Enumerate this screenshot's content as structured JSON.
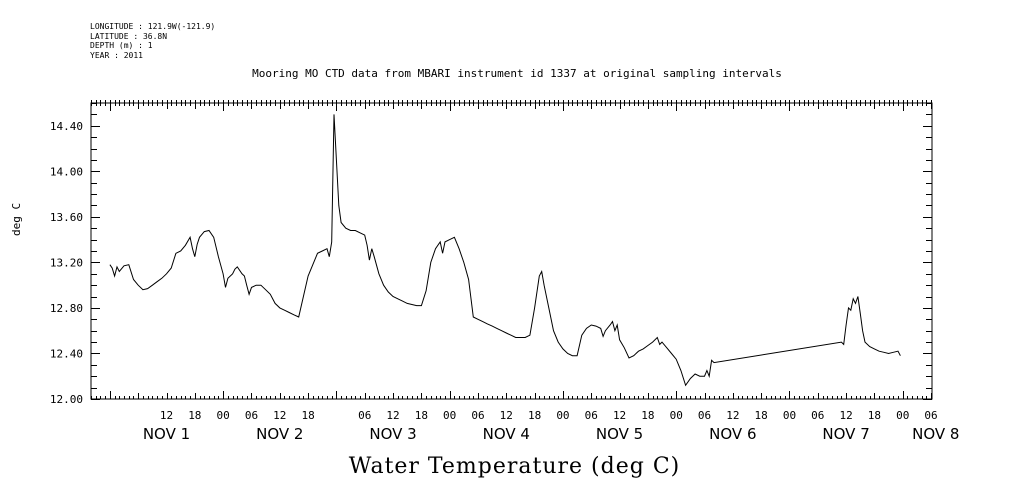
{
  "header": {
    "longitude": "LONGITUDE : 121.9W(-121.9)",
    "latitude": "LATITUDE : 36.8N",
    "depth": "DEPTH (m) : 1",
    "year": "YEAR : 2011"
  },
  "chart_data": {
    "type": "line",
    "title": "Mooring MO CTD data from MBARI instrument id 1337 at original sampling intervals",
    "subtitle": "Water Temperature (deg C)",
    "ylabel": "deg C",
    "xlabel": "",
    "ylim": [
      12.0,
      14.6
    ],
    "xlim_hours": [
      6,
      162
    ],
    "y_ticks": [
      "12.00",
      "12.40",
      "12.80",
      "13.20",
      "13.60",
      "14.00",
      "14.40"
    ],
    "x_hour_ticks": [
      {
        "h": 12,
        "label": "12"
      },
      {
        "h": 18,
        "label": "18"
      },
      {
        "h": 24,
        "label": "00"
      },
      {
        "h": 30,
        "label": "06"
      },
      {
        "h": 36,
        "label": "12"
      },
      {
        "h": 42,
        "label": "18"
      },
      {
        "h": 54,
        "label": "06"
      },
      {
        "h": 60,
        "label": "12"
      },
      {
        "h": 66,
        "label": "18"
      },
      {
        "h": 72,
        "label": "00"
      },
      {
        "h": 78,
        "label": "06"
      },
      {
        "h": 84,
        "label": "12"
      },
      {
        "h": 90,
        "label": "18"
      },
      {
        "h": 96,
        "label": "00"
      },
      {
        "h": 102,
        "label": "06"
      },
      {
        "h": 108,
        "label": "12"
      },
      {
        "h": 114,
        "label": "18"
      },
      {
        "h": 120,
        "label": "00"
      },
      {
        "h": 126,
        "label": "06"
      },
      {
        "h": 132,
        "label": "12"
      },
      {
        "h": 138,
        "label": "18"
      },
      {
        "h": 144,
        "label": "00"
      },
      {
        "h": 150,
        "label": "06"
      },
      {
        "h": 156,
        "label": "12"
      },
      {
        "h": 162,
        "label": "18"
      },
      {
        "h": 168,
        "label": "00"
      },
      {
        "h": 174,
        "label": "06"
      }
    ],
    "x_day_labels": [
      {
        "h": 12,
        "label": "NOV  1"
      },
      {
        "h": 36,
        "label": "NOV  2"
      },
      {
        "h": 60,
        "label": "NOV  3"
      },
      {
        "h": 84,
        "label": "NOV  4"
      },
      {
        "h": 108,
        "label": "NOV  5"
      },
      {
        "h": 132,
        "label": "NOV  6"
      },
      {
        "h": 156,
        "label": "NOV  7"
      },
      {
        "h": 175,
        "label": "NOV  8"
      }
    ],
    "series": [
      {
        "values_hour_temp": [
          [
            0,
            13.18
          ],
          [
            0.5,
            13.15
          ],
          [
            1,
            13.08
          ],
          [
            1.5,
            13.16
          ],
          [
            2,
            13.12
          ],
          [
            3,
            13.17
          ],
          [
            4,
            13.18
          ],
          [
            5,
            13.05
          ],
          [
            6,
            13.0
          ],
          [
            7,
            12.96
          ],
          [
            8,
            12.97
          ],
          [
            9,
            13.0
          ],
          [
            10,
            13.03
          ],
          [
            11,
            13.06
          ],
          [
            12,
            13.1
          ],
          [
            13,
            13.15
          ],
          [
            14,
            13.28
          ],
          [
            15,
            13.3
          ],
          [
            16,
            13.35
          ],
          [
            17,
            13.42
          ],
          [
            17.5,
            13.32
          ],
          [
            18,
            13.25
          ],
          [
            18.5,
            13.36
          ],
          [
            19,
            13.42
          ],
          [
            20,
            13.47
          ],
          [
            21,
            13.48
          ],
          [
            22,
            13.42
          ],
          [
            23,
            13.25
          ],
          [
            24,
            13.1
          ],
          [
            24.5,
            12.98
          ],
          [
            25,
            13.06
          ],
          [
            26,
            13.1
          ],
          [
            26.5,
            13.14
          ],
          [
            27,
            13.16
          ],
          [
            28,
            13.1
          ],
          [
            28.5,
            13.08
          ],
          [
            29,
            13.0
          ],
          [
            29.5,
            12.92
          ],
          [
            30,
            12.98
          ],
          [
            31,
            13.0
          ],
          [
            32,
            13.0
          ],
          [
            33,
            12.96
          ],
          [
            34,
            12.92
          ],
          [
            35,
            12.84
          ],
          [
            36,
            12.8
          ],
          [
            37,
            12.78
          ],
          [
            38,
            12.76
          ],
          [
            39,
            12.74
          ],
          [
            40,
            12.72
          ],
          [
            41,
            12.9
          ],
          [
            42,
            13.08
          ],
          [
            43,
            13.18
          ],
          [
            44,
            13.28
          ],
          [
            45,
            13.3
          ],
          [
            46,
            13.32
          ],
          [
            46.5,
            13.25
          ],
          [
            47,
            13.38
          ],
          [
            47.5,
            14.5
          ],
          [
            48,
            14.1
          ],
          [
            48.5,
            13.7
          ],
          [
            49,
            13.55
          ],
          [
            50,
            13.5
          ],
          [
            51,
            13.48
          ],
          [
            52,
            13.48
          ],
          [
            53,
            13.46
          ],
          [
            54,
            13.44
          ],
          [
            54.5,
            13.35
          ],
          [
            55,
            13.22
          ],
          [
            55.5,
            13.32
          ],
          [
            56,
            13.25
          ],
          [
            57,
            13.1
          ],
          [
            58,
            13.0
          ],
          [
            59,
            12.94
          ],
          [
            60,
            12.9
          ],
          [
            61,
            12.88
          ],
          [
            62,
            12.86
          ],
          [
            63,
            12.84
          ],
          [
            64,
            12.83
          ],
          [
            65,
            12.82
          ],
          [
            66,
            12.82
          ],
          [
            67,
            12.95
          ],
          [
            68,
            13.2
          ],
          [
            69,
            13.32
          ],
          [
            70,
            13.38
          ],
          [
            70.5,
            13.28
          ],
          [
            71,
            13.38
          ],
          [
            72,
            13.4
          ],
          [
            73,
            13.42
          ],
          [
            74,
            13.32
          ],
          [
            75,
            13.2
          ],
          [
            76,
            13.05
          ],
          [
            77,
            12.72
          ],
          [
            78,
            12.7
          ],
          [
            79,
            12.68
          ],
          [
            80,
            12.66
          ],
          [
            81,
            12.64
          ],
          [
            82,
            12.62
          ],
          [
            83,
            12.6
          ],
          [
            84,
            12.58
          ],
          [
            85,
            12.56
          ],
          [
            86,
            12.54
          ],
          [
            87,
            12.54
          ],
          [
            88,
            12.54
          ],
          [
            89,
            12.56
          ],
          [
            90,
            12.8
          ],
          [
            91,
            13.08
          ],
          [
            91.5,
            13.12
          ],
          [
            92,
            13.0
          ],
          [
            93,
            12.8
          ],
          [
            94,
            12.6
          ],
          [
            95,
            12.5
          ],
          [
            96,
            12.44
          ],
          [
            97,
            12.4
          ],
          [
            98,
            12.38
          ],
          [
            99,
            12.38
          ],
          [
            100,
            12.56
          ],
          [
            101,
            12.62
          ],
          [
            102,
            12.65
          ],
          [
            103,
            12.64
          ],
          [
            104,
            12.62
          ],
          [
            104.5,
            12.55
          ],
          [
            105,
            12.6
          ],
          [
            106,
            12.65
          ],
          [
            106.5,
            12.68
          ],
          [
            107,
            12.6
          ],
          [
            107.5,
            12.65
          ],
          [
            108,
            12.52
          ],
          [
            109,
            12.45
          ],
          [
            110,
            12.36
          ],
          [
            111,
            12.38
          ],
          [
            112,
            12.42
          ],
          [
            113,
            12.44
          ],
          [
            114,
            12.47
          ],
          [
            115,
            12.5
          ],
          [
            116,
            12.54
          ],
          [
            116.5,
            12.48
          ],
          [
            117,
            12.5
          ],
          [
            118,
            12.45
          ],
          [
            119,
            12.4
          ],
          [
            120,
            12.35
          ],
          [
            121,
            12.25
          ],
          [
            122,
            12.12
          ],
          [
            123,
            12.18
          ],
          [
            124,
            12.22
          ],
          [
            125,
            12.2
          ],
          [
            126,
            12.2
          ],
          [
            126.5,
            12.25
          ],
          [
            127,
            12.2
          ],
          [
            127.5,
            12.34
          ],
          [
            128,
            12.32
          ],
          [
            155,
            12.5
          ],
          [
            155.5,
            12.48
          ],
          [
            156,
            12.65
          ],
          [
            156.5,
            12.8
          ],
          [
            157,
            12.78
          ],
          [
            157.5,
            12.88
          ],
          [
            158,
            12.84
          ],
          [
            158.5,
            12.9
          ],
          [
            159,
            12.75
          ],
          [
            159.5,
            12.6
          ],
          [
            160,
            12.5
          ],
          [
            161,
            12.46
          ],
          [
            162,
            12.44
          ],
          [
            163,
            12.42
          ],
          [
            164,
            12.41
          ],
          [
            165,
            12.4
          ],
          [
            166,
            12.41
          ],
          [
            167,
            12.42
          ],
          [
            167.5,
            12.38
          ]
        ]
      }
    ]
  }
}
